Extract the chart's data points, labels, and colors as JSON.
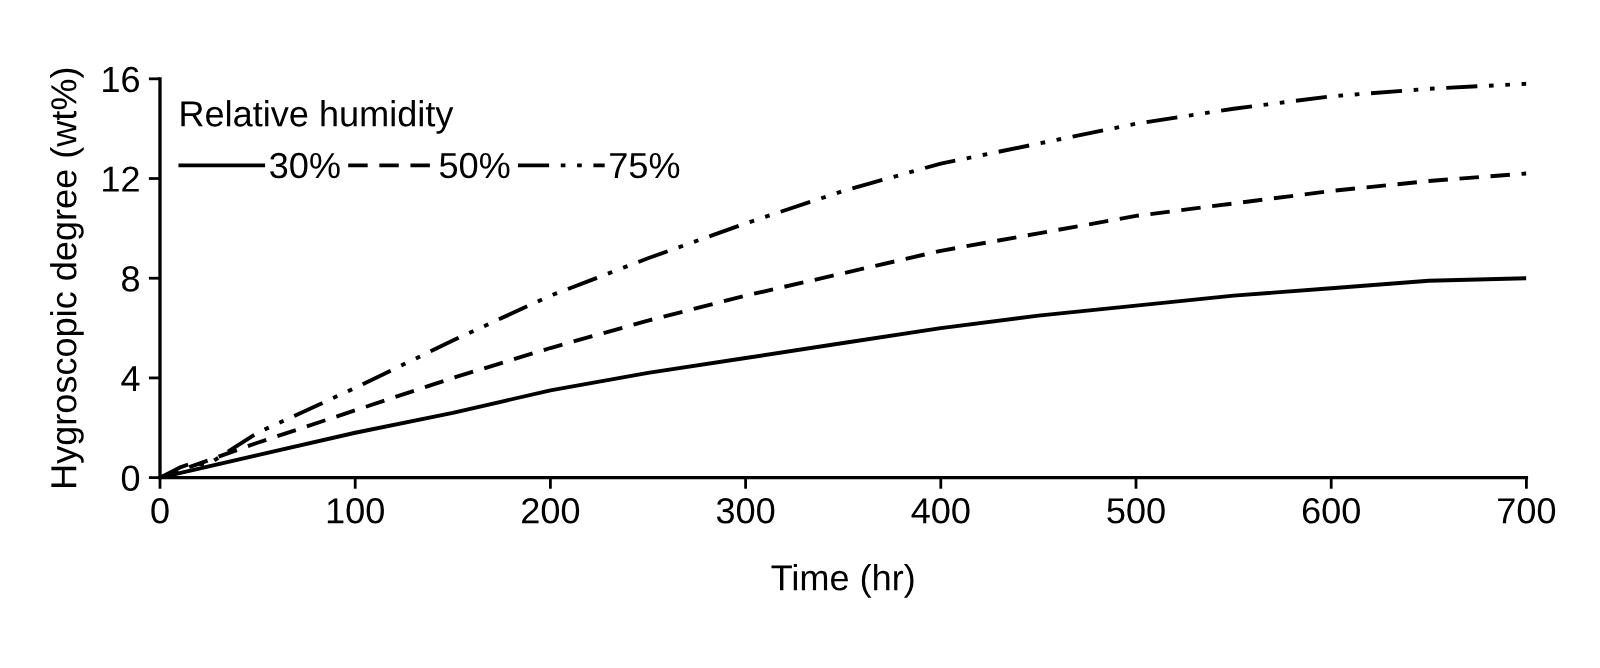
{
  "chart_data": {
    "type": "line",
    "xlabel": "Time (hr)",
    "ylabel": "Hygroscopic degree (wt%)",
    "legend_title": "Relative humidity",
    "xlim": [
      0,
      700
    ],
    "ylim": [
      0,
      16
    ],
    "xticks": [
      0,
      100,
      200,
      300,
      400,
      500,
      600,
      700
    ],
    "yticks": [
      0,
      4,
      8,
      12,
      16
    ],
    "grid": false,
    "legend": "top left",
    "marker": "none",
    "series": [
      {
        "name": "30%",
        "color": "#000000",
        "line_style": "solid",
        "x": [
          0,
          50,
          100,
          150,
          200,
          250,
          300,
          350,
          400,
          450,
          500,
          550,
          600,
          650,
          700
        ],
        "values": [
          0,
          0.9,
          1.8,
          2.6,
          3.5,
          4.2,
          4.8,
          5.4,
          6.0,
          6.5,
          6.9,
          7.3,
          7.6,
          7.9,
          8.0
        ]
      },
      {
        "name": "50%",
        "color": "#000000",
        "line_style": "dashed",
        "x": [
          0,
          50,
          100,
          150,
          200,
          250,
          300,
          350,
          400,
          450,
          500,
          550,
          600,
          650,
          700
        ],
        "values": [
          0,
          1.4,
          2.7,
          4.0,
          5.2,
          6.3,
          7.3,
          8.2,
          9.1,
          9.8,
          10.5,
          11.0,
          11.5,
          11.9,
          12.2
        ]
      },
      {
        "name": "75%",
        "color": "#000000",
        "line_style": "dashdot",
        "x": [
          0,
          10,
          17,
          24,
          50,
          100,
          150,
          200,
          250,
          300,
          350,
          400,
          450,
          500,
          550,
          600,
          650,
          700
        ],
        "values": [
          0,
          0.4,
          0.6,
          0.5,
          1.8,
          3.6,
          5.5,
          7.3,
          8.8,
          10.2,
          11.5,
          12.6,
          13.4,
          14.2,
          14.8,
          15.3,
          15.6,
          15.8
        ]
      }
    ]
  }
}
